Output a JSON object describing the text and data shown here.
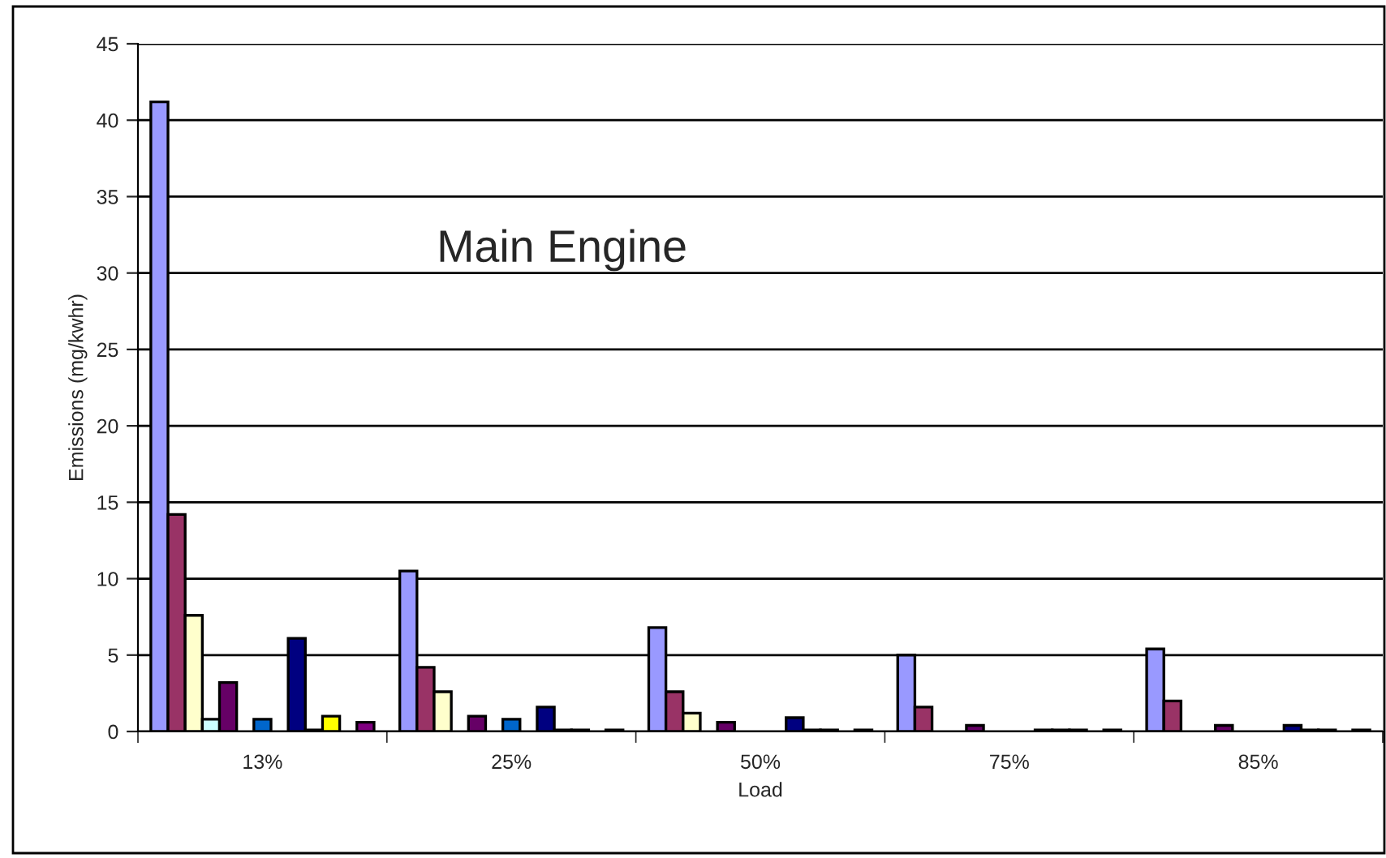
{
  "chart_data": {
    "type": "bar",
    "title": "Main Engine",
    "xlabel": "Load",
    "ylabel": "Emissions (mg/kwhr)",
    "categories": [
      "13%",
      "25%",
      "50%",
      "75%",
      "85%"
    ],
    "series": [
      {
        "color": "#9999ff",
        "values": [
          41.2,
          10.5,
          6.8,
          5.0,
          5.4
        ]
      },
      {
        "color": "#993366",
        "values": [
          14.2,
          4.2,
          2.6,
          1.6,
          2.0
        ]
      },
      {
        "color": "#ffffcc",
        "values": [
          7.6,
          2.6,
          1.2,
          null,
          null
        ]
      },
      {
        "color": "#ccffff",
        "values": [
          0.8,
          null,
          null,
          null,
          null
        ]
      },
      {
        "color": "#660066",
        "values": [
          3.2,
          1.0,
          0.6,
          0.4,
          0.4
        ]
      },
      {
        "color": "#ff8080",
        "values": [
          null,
          null,
          null,
          null,
          null
        ]
      },
      {
        "color": "#0066cc",
        "values": [
          0.8,
          0.8,
          null,
          null,
          null
        ]
      },
      {
        "color": "#ccccff",
        "values": [
          null,
          null,
          null,
          null,
          null
        ]
      },
      {
        "color": "#000080",
        "values": [
          6.1,
          1.6,
          0.9,
          0.1,
          0.4
        ]
      },
      {
        "color": "#ff00ff",
        "values": [
          0.1,
          0.1,
          0.1,
          0.1,
          0.1
        ]
      },
      {
        "color": "#ffff00",
        "values": [
          1.0,
          0.1,
          0.1,
          0.1,
          0.1
        ]
      },
      {
        "color": "#00ffff",
        "values": [
          null,
          null,
          null,
          null,
          null
        ]
      },
      {
        "color": "#800080",
        "values": [
          0.6,
          0.1,
          0.1,
          0.1,
          0.1
        ]
      }
    ],
    "ylim": [
      0,
      45
    ],
    "yticks": [
      0,
      5,
      10,
      15,
      20,
      25,
      30,
      35,
      40,
      45
    ],
    "grid": "y"
  }
}
